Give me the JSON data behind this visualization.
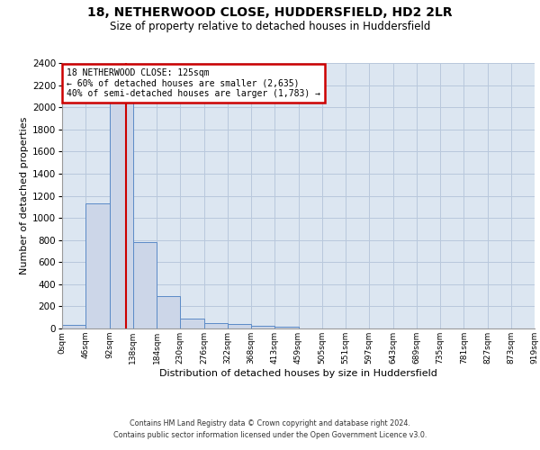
{
  "title_line1": "18, NETHERWOOD CLOSE, HUDDERSFIELD, HD2 2LR",
  "title_line2": "Size of property relative to detached houses in Huddersfield",
  "xlabel": "Distribution of detached houses by size in Huddersfield",
  "ylabel": "Number of detached properties",
  "footer_line1": "Contains HM Land Registry data © Crown copyright and database right 2024.",
  "footer_line2": "Contains public sector information licensed under the Open Government Licence v3.0.",
  "bin_labels": [
    "0sqm",
    "46sqm",
    "92sqm",
    "138sqm",
    "184sqm",
    "230sqm",
    "276sqm",
    "322sqm",
    "368sqm",
    "413sqm",
    "459sqm",
    "505sqm",
    "551sqm",
    "597sqm",
    "643sqm",
    "689sqm",
    "735sqm",
    "781sqm",
    "827sqm",
    "873sqm",
    "919sqm"
  ],
  "bar_values": [
    30,
    1130,
    2150,
    780,
    290,
    90,
    50,
    40,
    25,
    15,
    0,
    0,
    0,
    0,
    0,
    0,
    0,
    0,
    0,
    0
  ],
  "bar_color": "#ccd6e8",
  "bar_edge_color": "#5b8ac7",
  "grid_color": "#b8c8dc",
  "background_color": "#dce6f1",
  "annotation_box_color": "#ffffff",
  "annotation_border_color": "#cc0000",
  "property_line_color": "#cc0000",
  "property_size": 125,
  "property_label": "18 NETHERWOOD CLOSE: 125sqm",
  "pct_smaller": 60,
  "count_smaller": 2635,
  "pct_larger_semi": 40,
  "count_larger_semi": 1783,
  "ylim": [
    0,
    2400
  ],
  "yticks": [
    0,
    200,
    400,
    600,
    800,
    1000,
    1200,
    1400,
    1600,
    1800,
    2000,
    2200,
    2400
  ]
}
